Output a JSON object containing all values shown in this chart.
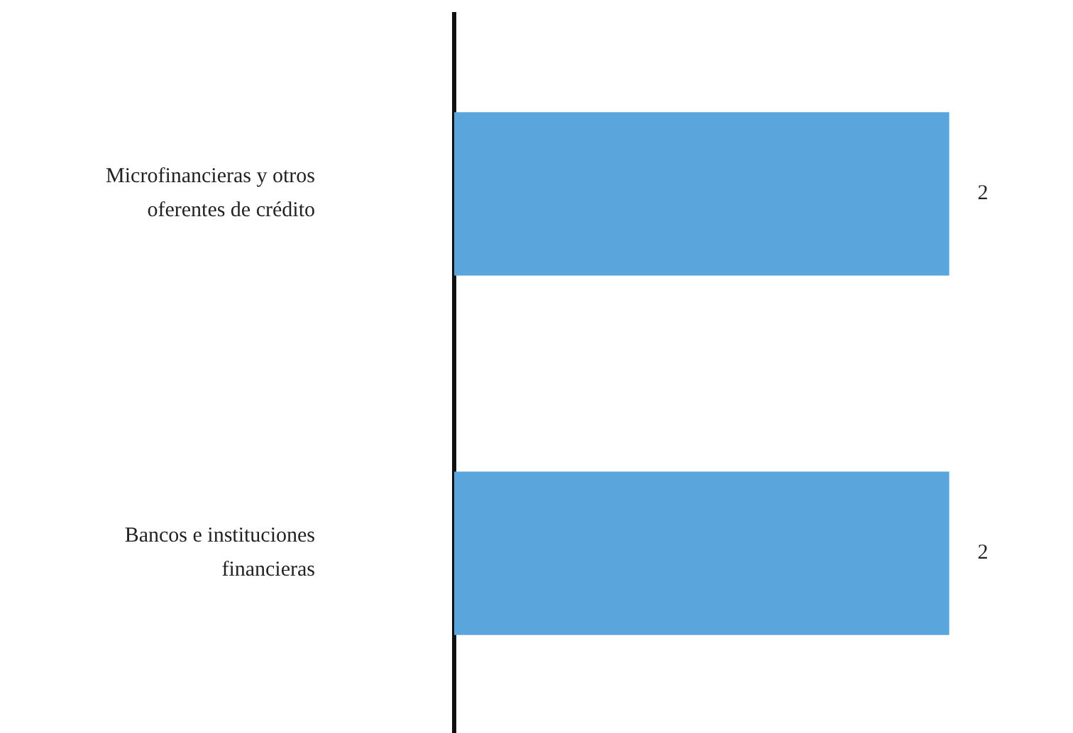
{
  "chart_data": {
    "type": "bar",
    "orientation": "horizontal",
    "categories": [
      "Microfinancieras y otros oferentes de crédito",
      "Bancos e instituciones financieras"
    ],
    "values": [
      2,
      2
    ],
    "color": "#5aa6dc",
    "data_labels": true
  }
}
